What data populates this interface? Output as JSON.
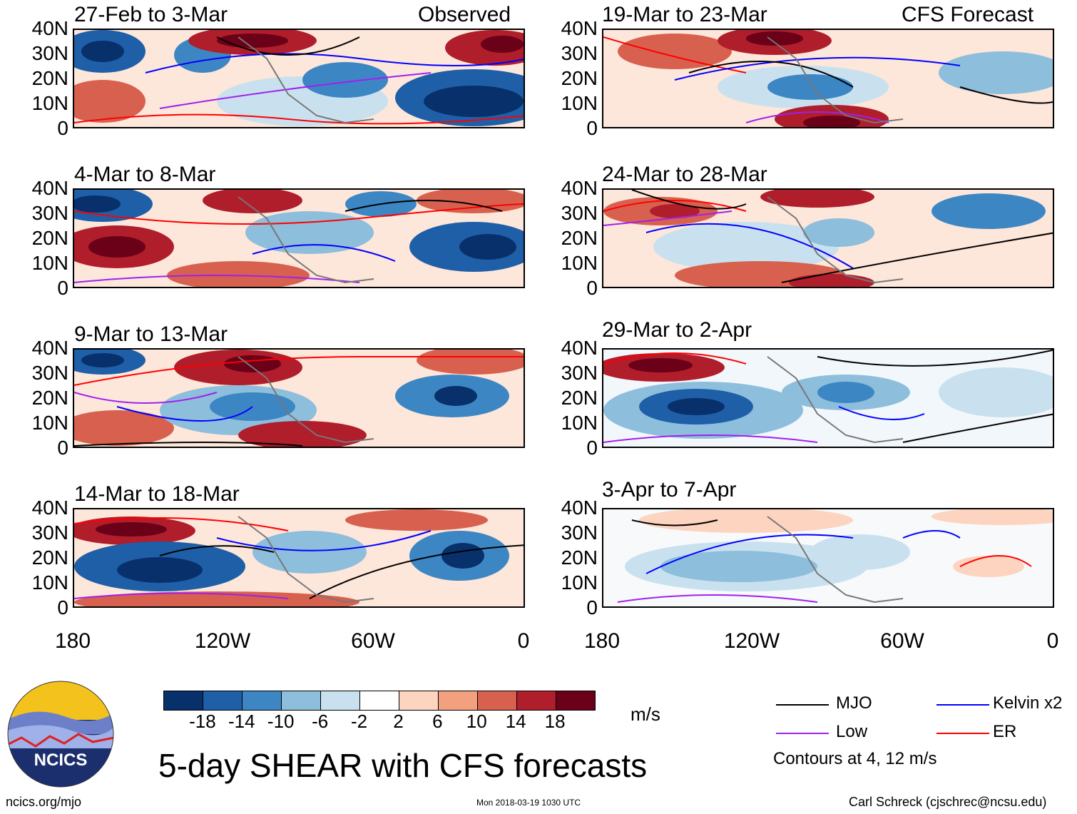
{
  "figure": {
    "title": "5-day SHEAR with CFS forecasts",
    "units": "m/s",
    "source_url": "ncics.org/mjo",
    "timestamp": "Mon 2018-03-19 1030 UTC",
    "author": "Carl Schreck (cjschrec@ncsu.edu)",
    "logo_text": "NCICS"
  },
  "columns": {
    "left_tag": "Observed",
    "right_tag": "CFS Forecast"
  },
  "panels_left": [
    {
      "title": "27-Feb to 3-Mar"
    },
    {
      "title": "4-Mar to 8-Mar"
    },
    {
      "title": "9-Mar to 13-Mar"
    },
    {
      "title": "14-Mar to 18-Mar"
    }
  ],
  "panels_right": [
    {
      "title": "19-Mar to 23-Mar"
    },
    {
      "title": "24-Mar to 28-Mar"
    },
    {
      "title": "29-Mar to 2-Apr"
    },
    {
      "title": "3-Apr to 7-Apr"
    }
  ],
  "axes": {
    "y_ticks": [
      "40N",
      "30N",
      "20N",
      "10N",
      "0"
    ],
    "x_ticks": [
      "180",
      "120W",
      "60W",
      "0"
    ]
  },
  "colorbar": {
    "labels": [
      "-18",
      "-14",
      "-10",
      "-6",
      "-2",
      "2",
      "6",
      "10",
      "14",
      "18"
    ],
    "colors": [
      "#08306b",
      "#1f5fa8",
      "#3d86c4",
      "#8dbedc",
      "#c9e1ef",
      "#ffffff",
      "#fcd4bf",
      "#f2a07e",
      "#d8604e",
      "#b01d2b",
      "#6b0019"
    ]
  },
  "legend": {
    "items": [
      {
        "label": "MJO",
        "color": "#000000"
      },
      {
        "label": "Kelvin x2",
        "color": "#0000ff"
      },
      {
        "label": "Low",
        "color": "#a020f0"
      },
      {
        "label": "ER",
        "color": "#ff0000"
      }
    ],
    "note": "Contours at 4, 12 m/s"
  }
}
